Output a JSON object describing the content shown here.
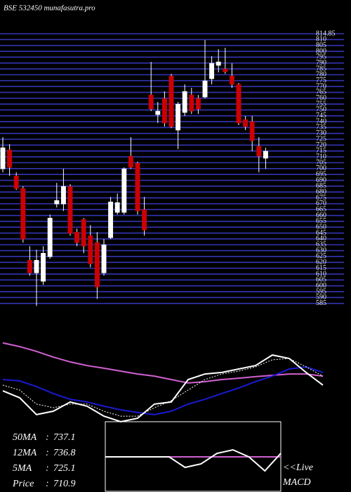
{
  "chart_data": [
    {
      "type": "candlestick",
      "title": "BSE 532450  munafasutra.pro",
      "open": [
        699.8,
        716,
        693.8,
        683,
        621.8,
        611,
        603.8,
        624.8,
        669.8,
        669.8,
        684.8,
        645.8,
        656.6,
        642.8,
        636.8,
        611,
        641,
        662.6,
        662.6,
        710.6,
        704.6,
        665,
        762.8,
        746,
        759.8,
        779,
        732.8,
        747.8,
        762.8,
        759.8,
        761,
        776.6,
        788,
        785,
        779,
        771.8,
        741.8,
        740,
        719,
        708.8
      ],
      "high": [
        726.8,
        720.8,
        696.8,
        684.8,
        633.8,
        630.8,
        633.8,
        660.8,
        687.8,
        699.8,
        686.6,
        648.8,
        657.8,
        651.8,
        645.8,
        639.8,
        675.8,
        678.8,
        701,
        726.8,
        705.8,
        675.8,
        791,
        756.8,
        765.8,
        780.8,
        756.8,
        771.8,
        768.8,
        762.8,
        809.6,
        795.8,
        801.8,
        803,
        789.8,
        773,
        744.8,
        744.8,
        726.8,
        717.8
      ],
      "low": [
        696.8,
        693.8,
        681.8,
        636.8,
        608.6,
        582.8,
        600.8,
        623,
        666.8,
        663.8,
        642.8,
        633.8,
        627.8,
        615.8,
        588.8,
        608.6,
        639.8,
        660.8,
        660.8,
        699.8,
        660.8,
        642.8,
        749,
        738.8,
        735.8,
        734.6,
        716.6,
        744.8,
        746.6,
        746.6,
        759.8,
        771.8,
        782,
        780.8,
        768.8,
        737,
        732.8,
        714.8,
        696.8,
        699.8
      ],
      "close": [
        717.8,
        701,
        683,
        639.8,
        611,
        621.8,
        627.8,
        657.8,
        672.8,
        684.8,
        644.6,
        636.8,
        633.8,
        618.8,
        599,
        635,
        671.6,
        671,
        699.8,
        701,
        663.8,
        647.6,
        750.8,
        749,
        738.8,
        735.8,
        755,
        765.8,
        749,
        750.8,
        774.8,
        789.8,
        791,
        782.6,
        771.8,
        738.8,
        735.8,
        723.8,
        710.6,
        714.8
      ],
      "up_color": "#ffffff",
      "down_color": "#cc0000",
      "grid_color": "#3434b4",
      "ylim": [
        583,
        815
      ],
      "yticks": [
        {
          "value": 815,
          "label": "814.85"
        },
        810,
        805,
        800,
        795,
        790,
        785,
        780,
        775,
        770,
        765,
        760,
        755,
        750,
        745,
        740,
        735,
        730,
        725,
        720,
        715,
        710,
        705,
        700,
        695,
        690,
        685,
        680,
        675,
        670,
        665,
        660,
        655,
        650,
        645,
        640,
        635,
        630,
        625,
        620,
        615,
        610,
        605,
        600,
        595,
        590,
        585
      ],
      "grid": true
    },
    {
      "type": "line",
      "ylim": [
        680,
        760
      ],
      "series": [
        {
          "color": "#d060d0",
          "style": "solid",
          "values": [
            754.7,
            751.3,
            746.7,
            741.3,
            736.7,
            733.3,
            730.7,
            728,
            725.3,
            723.3,
            720,
            716.7,
            718,
            720,
            721.3,
            722.7,
            724,
            725.3,
            725.3,
            723.3
          ]
        },
        {
          "color": "#1a1ad0",
          "style": "solid",
          "values": [
            720,
            718.7,
            713.3,
            706.7,
            701.3,
            698.7,
            694.7,
            691.3,
            688.7,
            686.7,
            690,
            696.7,
            701.3,
            706.7,
            712,
            718,
            723.3,
            730,
            732,
            726.7
          ]
        },
        {
          "color": "#ffffff",
          "style": "solid",
          "values": [
            709.3,
            702.7,
            686.7,
            690,
            698.7,
            694.7,
            685.3,
            680,
            683.3,
            696.7,
            698.7,
            720,
            725.3,
            726.7,
            730,
            733.3,
            743.3,
            740,
            726.7,
            714.7
          ]
        },
        {
          "color": "#ffffff",
          "style": "dotted",
          "values": [
            714.7,
            710,
            696.7,
            693.3,
            696.7,
            696.7,
            690,
            685.3,
            685.3,
            693.3,
            700,
            710,
            720,
            725.3,
            728,
            732,
            738.7,
            740,
            732,
            723.3
          ]
        }
      ]
    },
    {
      "type": "line",
      "ylim": [
        -1,
        1
      ],
      "series": [
        {
          "color": "#d060d0",
          "style": "solid",
          "values": [
            0,
            0,
            0,
            0,
            0,
            0,
            0,
            0,
            0,
            0,
            0,
            0
          ]
        },
        {
          "color": "#ffffff",
          "style": "solid",
          "values": [
            0,
            0,
            0,
            0,
            0,
            -0.3,
            -0.2,
            0.1,
            0.2,
            0,
            -0.4,
            0.1
          ]
        }
      ]
    }
  ],
  "info": {
    "separator": ":",
    "rows": [
      {
        "label": "50MA",
        "value": 737.1
      },
      {
        "label": "12MA",
        "value": 736.8
      },
      {
        "label": "5MA",
        "value": 725.1
      },
      {
        "label": "Price",
        "value": 710.9
      }
    ]
  },
  "live": "<<Live",
  "macd_label": "MACD"
}
